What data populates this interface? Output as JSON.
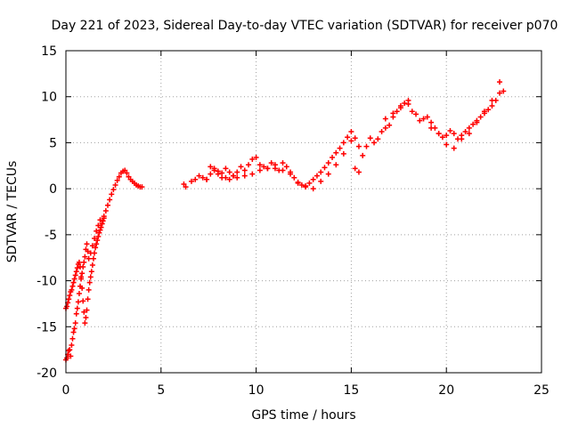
{
  "chart_data": {
    "type": "scatter",
    "title": "Day 221 of 2023, Sidereal Day-to-day VTEC variation (SDTVAR) for receiver p070",
    "xlabel": "GPS time / hours",
    "ylabel": "SDTVAR / TECUs",
    "xlim": [
      0,
      25
    ],
    "ylim": [
      -20,
      15
    ],
    "xticks": [
      0,
      5,
      10,
      15,
      20,
      25
    ],
    "xtick_labels": [
      "0",
      "5",
      "10",
      "15",
      "20",
      "25"
    ],
    "yticks": [
      -20,
      -15,
      -10,
      -5,
      0,
      5,
      10,
      15
    ],
    "ytick_labels": [
      "-20",
      "-15",
      "-10",
      "-5",
      "0",
      "5",
      "10",
      "15"
    ],
    "grid": true,
    "marker": "+",
    "series": [
      {
        "name": "SDTVAR",
        "color": "#ff0000",
        "x": [
          0.0,
          0.05,
          0.1,
          0.15,
          0.2,
          0.25,
          0.3,
          0.35,
          0.4,
          0.45,
          0.5,
          0.55,
          0.6,
          0.65,
          0.7,
          0.75,
          0.8,
          0.85,
          0.9,
          0.95,
          1.0,
          1.05,
          1.1,
          1.15,
          1.2,
          1.3,
          1.4,
          1.5,
          1.6,
          1.7,
          1.8,
          1.9,
          2.0,
          2.1,
          2.2,
          2.3,
          2.4,
          2.5,
          2.6,
          2.7,
          2.8,
          2.9,
          3.0,
          3.1,
          3.2,
          3.3,
          3.4,
          3.5,
          3.6,
          3.7,
          3.8,
          3.9,
          4.0,
          0.0,
          0.05,
          0.1,
          0.15,
          0.2,
          0.25,
          0.3,
          0.35,
          0.4,
          0.45,
          0.5,
          0.55,
          0.6,
          0.65,
          0.7,
          0.75,
          0.8,
          0.85,
          0.9,
          0.95,
          1.0,
          1.05,
          1.1,
          1.15,
          1.2,
          1.25,
          1.3,
          1.35,
          1.4,
          1.45,
          1.5,
          1.55,
          1.6,
          1.65,
          1.7,
          1.75,
          1.8,
          1.85,
          1.9,
          1.95,
          2.0,
          6.2,
          6.3,
          6.6,
          6.8,
          7.0,
          7.2,
          7.4,
          7.6,
          7.8,
          8.0,
          8.2,
          8.4,
          8.6,
          8.8,
          9.0,
          9.2,
          9.4,
          9.6,
          9.8,
          10.0,
          10.2,
          10.4,
          10.6,
          10.8,
          11.0,
          11.2,
          11.4,
          11.6,
          11.8,
          12.0,
          12.2,
          12.4,
          12.6,
          12.8,
          13.0,
          13.2,
          13.4,
          13.6,
          13.8,
          14.0,
          14.2,
          14.4,
          14.6,
          14.8,
          15.0,
          15.2,
          15.4,
          15.6,
          15.8,
          16.0,
          16.2,
          16.4,
          16.6,
          16.8,
          17.0,
          17.2,
          17.4,
          17.6,
          17.8,
          18.0,
          18.2,
          18.4,
          18.6,
          18.8,
          19.0,
          19.2,
          19.4,
          19.6,
          19.8,
          20.0,
          20.2,
          20.4,
          20.6,
          20.8,
          21.0,
          21.2,
          21.4,
          21.6,
          21.8,
          22.0,
          22.2,
          22.4,
          22.6,
          22.8,
          23.0,
          7.4,
          7.6,
          7.8,
          8.0,
          8.2,
          8.4,
          8.6,
          8.8,
          9.0,
          9.4,
          9.8,
          10.2,
          10.6,
          11.0,
          11.4,
          11.8,
          12.2,
          12.6,
          13.0,
          13.4,
          13.8,
          14.2,
          14.6,
          15.0,
          16.8,
          17.2,
          17.6,
          18.0,
          19.2,
          19.6,
          20.0,
          20.4,
          20.8,
          21.2,
          21.6,
          22.0,
          22.4,
          22.8,
          15.2,
          15.4
        ],
        "y": [
          -18.6,
          -18.4,
          -18.0,
          -17.6,
          -17.5,
          -18.2,
          -17.0,
          -16.3,
          -15.6,
          -15.2,
          -14.6,
          -13.6,
          -13.0,
          -12.3,
          -11.4,
          -10.6,
          -9.8,
          -9.2,
          -8.5,
          -8.0,
          -7.4,
          -6.6,
          -6.0,
          -6.8,
          -7.6,
          -7.0,
          -6.2,
          -5.4,
          -4.6,
          -4.0,
          -3.4,
          -3.8,
          -3.0,
          -2.4,
          -1.8,
          -1.2,
          -0.6,
          -0.1,
          0.4,
          0.9,
          1.3,
          1.7,
          1.9,
          2.0,
          1.7,
          1.3,
          1.0,
          0.8,
          0.6,
          0.4,
          0.3,
          0.2,
          0.2,
          -13.0,
          -12.8,
          -12.4,
          -12.0,
          -11.6,
          -11.2,
          -11.0,
          -10.6,
          -10.2,
          -9.8,
          -9.4,
          -9.0,
          -8.6,
          -8.2,
          -8.0,
          -8.5,
          -9.6,
          -10.8,
          -12.2,
          -13.4,
          -14.6,
          -14.0,
          -13.2,
          -12.0,
          -11.0,
          -10.2,
          -9.6,
          -9.0,
          -8.3,
          -7.6,
          -7.0,
          -6.4,
          -6.0,
          -5.6,
          -5.2,
          -4.8,
          -4.5,
          -4.2,
          -3.8,
          -3.5,
          -3.2,
          0.5,
          0.2,
          0.8,
          1.0,
          1.4,
          1.2,
          1.0,
          1.6,
          2.2,
          1.9,
          1.7,
          1.2,
          1.0,
          1.4,
          1.8,
          2.4,
          2.0,
          2.6,
          3.2,
          3.4,
          2.6,
          2.4,
          2.2,
          2.8,
          2.2,
          2.0,
          2.8,
          2.4,
          1.8,
          1.2,
          0.7,
          0.4,
          0.3,
          0.6,
          1.0,
          1.4,
          1.8,
          2.3,
          2.8,
          3.4,
          3.9,
          4.4,
          5.0,
          5.6,
          6.2,
          5.5,
          4.6,
          3.6,
          4.6,
          5.5,
          5.0,
          5.4,
          6.2,
          6.6,
          6.9,
          7.8,
          8.4,
          9.0,
          9.3,
          9.6,
          8.4,
          8.1,
          7.4,
          7.6,
          7.8,
          7.2,
          6.6,
          6.0,
          5.6,
          5.8,
          6.3,
          6.0,
          5.4,
          5.8,
          6.2,
          6.6,
          7.0,
          7.4,
          7.8,
          8.2,
          8.6,
          9.0,
          9.6,
          10.4,
          10.6,
          1.0,
          2.4,
          2.0,
          1.6,
          1.2,
          2.2,
          1.8,
          1.4,
          1.2,
          1.4,
          1.6,
          2.0,
          2.2,
          2.6,
          2.0,
          1.6,
          0.6,
          0.2,
          0.0,
          0.8,
          1.6,
          2.6,
          3.8,
          5.2,
          7.6,
          8.2,
          8.8,
          9.2,
          6.6,
          6.0,
          4.8,
          4.4,
          5.4,
          6.0,
          7.2,
          8.4,
          9.6,
          11.6,
          2.2,
          1.8
        ]
      }
    ]
  }
}
